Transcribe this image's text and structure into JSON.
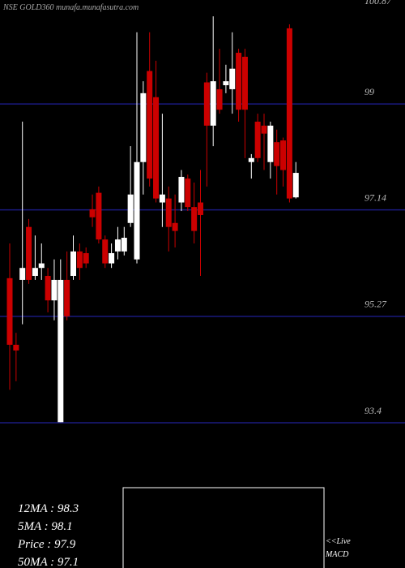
{
  "chart_data": {
    "type": "candlestick",
    "title": "NSE GOLD360 munafa.munafasutra.com",
    "ylim": [
      93.4,
      100.87
    ],
    "yticks": [
      100.87,
      99,
      97.14,
      95.27,
      93.4
    ],
    "grid": true,
    "up_color": "#ffffff",
    "down_color": "#cc0000",
    "grid_color": "#1a1a80",
    "ohlc": [
      [
        95.94,
        94.77,
        96.55,
        93.98
      ],
      [
        94.77,
        94.67,
        94.98,
        94.13
      ],
      [
        95.91,
        96.12,
        98.69,
        95.13
      ],
      [
        96.84,
        95.91,
        96.98,
        95.84
      ],
      [
        95.98,
        96.12,
        96.69,
        95.91
      ],
      [
        96.12,
        96.2,
        96.55,
        95.91
      ],
      [
        95.98,
        95.55,
        96.12,
        95.34
      ],
      [
        95.55,
        95.91,
        96.27,
        95.2
      ],
      [
        93.41,
        95.91,
        96.27,
        93.41
      ],
      [
        95.91,
        95.27,
        96.41,
        95.2
      ],
      [
        95.98,
        96.41,
        96.69,
        95.91
      ],
      [
        96.41,
        96.12,
        96.55,
        95.91
      ],
      [
        96.38,
        96.2,
        96.48,
        96.12
      ],
      [
        97.15,
        97.01,
        97.41,
        96.84
      ],
      [
        97.44,
        96.62,
        97.55,
        96.55
      ],
      [
        96.62,
        96.2,
        96.69,
        96.12
      ],
      [
        96.2,
        96.38,
        96.55,
        96.12
      ],
      [
        96.41,
        96.62,
        96.84,
        96.27
      ],
      [
        96.41,
        96.65,
        96.84,
        96.34
      ],
      [
        96.91,
        97.41,
        98.26,
        96.84
      ],
      [
        96.27,
        97.98,
        100.26,
        96.2
      ],
      [
        97.98,
        99.19,
        99.4,
        97.41
      ],
      [
        99.58,
        97.69,
        100.26,
        97.55
      ],
      [
        99.12,
        97.34,
        99.76,
        97.27
      ],
      [
        97.27,
        97.41,
        98.83,
        96.84
      ],
      [
        97.34,
        96.84,
        97.55,
        96.41
      ],
      [
        96.91,
        96.77,
        97.41,
        96.48
      ],
      [
        97.27,
        97.72,
        97.84,
        97.12
      ],
      [
        97.69,
        97.19,
        97.76,
        97.12
      ],
      [
        97.19,
        96.77,
        97.62,
        96.55
      ],
      [
        97.27,
        97.05,
        97.84,
        95.98
      ],
      [
        99.38,
        98.62,
        99.55,
        97.55
      ],
      [
        98.62,
        99.4,
        100.54,
        98.26
      ],
      [
        99.26,
        98.9,
        99.97,
        98.83
      ],
      [
        99.33,
        99.4,
        99.69,
        99.19
      ],
      [
        99.26,
        99.62,
        100.26,
        98.83
      ],
      [
        99.9,
        98.9,
        99.97,
        98.69
      ],
      [
        99.83,
        98.9,
        99.97,
        98.05
      ],
      [
        97.98,
        98.05,
        98.12,
        97.69
      ],
      [
        98.69,
        98.05,
        98.83,
        97.98
      ],
      [
        98.62,
        98.48,
        98.83,
        97.84
      ],
      [
        97.98,
        98.62,
        98.69,
        97.69
      ],
      [
        98.33,
        97.91,
        98.55,
        97.41
      ],
      [
        98.36,
        97.84,
        98.41,
        97.55
      ],
      [
        100.33,
        97.34,
        100.4,
        97.27
      ],
      [
        97.36,
        97.79,
        97.98,
        97.34
      ]
    ],
    "stats": [
      "12MA : 98.3",
      "5MA : 98.1",
      "Price : 97.9",
      "50MA : 97.1"
    ],
    "macd_label": [
      "<<Live",
      "MACD"
    ]
  }
}
